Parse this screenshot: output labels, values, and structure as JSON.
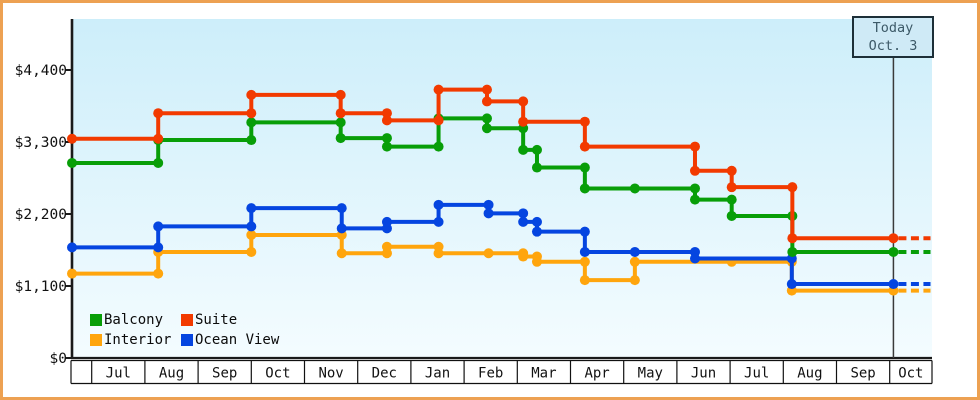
{
  "window": {
    "border_color": "#eda152"
  },
  "today": {
    "line1": "Today",
    "line2": "Oct. 3",
    "t": 15.07
  },
  "legend": {
    "items": [
      {
        "label": "Balcony",
        "color": "#089e08"
      },
      {
        "label": "Suite",
        "color": "#f23a00"
      },
      {
        "label": "Interior",
        "color": "#ffa50d"
      },
      {
        "label": "Ocean View",
        "color": "#0545e0"
      }
    ]
  },
  "chart_data": {
    "type": "line",
    "subtype": "step-price-history",
    "title": "",
    "ylabel": "",
    "xlabel": "",
    "ylim": [
      0,
      4708
    ],
    "grid": false,
    "legend_position": "bottom-left",
    "y_axis": {
      "ticks": [
        {
          "value": 0,
          "label": "$0"
        },
        {
          "value": 1100,
          "label": "$1,100"
        },
        {
          "value": 2200,
          "label": "$2,200"
        },
        {
          "value": 3300,
          "label": "$3,300"
        },
        {
          "value": 4400,
          "label": "$4,400"
        }
      ]
    },
    "x_axis": {
      "months": [
        "Jul",
        "Aug",
        "Sep",
        "Oct",
        "Nov",
        "Dec",
        "Jan",
        "Feb",
        "Mar",
        "Apr",
        "May",
        "Jun",
        "Jul",
        "Aug",
        "Sep",
        "Oct"
      ]
    },
    "annotation": {
      "label": "Today Oct. 3",
      "t": 15.07
    },
    "series": [
      {
        "name": "Interior",
        "color": "#ffa50d",
        "steps": [
          [
            -0.37,
            1290
          ],
          [
            1.25,
            1620
          ],
          [
            3.0,
            1880
          ],
          [
            4.7,
            1600
          ],
          [
            5.55,
            1700
          ],
          [
            6.52,
            1600
          ],
          [
            8.11,
            1550
          ],
          [
            8.37,
            1470
          ],
          [
            9.27,
            1190
          ],
          [
            10.21,
            1470
          ],
          [
            13.16,
            1030
          ]
        ],
        "markers": [
          7.46,
          12.03
        ],
        "end_t": 15.07,
        "current_price": 1030
      },
      {
        "name": "Ocean View",
        "color": "#0545e0",
        "steps": [
          [
            -0.37,
            1690
          ],
          [
            1.25,
            2010
          ],
          [
            3.0,
            2290
          ],
          [
            4.7,
            1980
          ],
          [
            5.55,
            2080
          ],
          [
            6.52,
            2340
          ],
          [
            7.46,
            2210
          ],
          [
            8.11,
            2080
          ],
          [
            8.37,
            1930
          ],
          [
            9.27,
            1620
          ],
          [
            11.34,
            1520
          ],
          [
            13.16,
            1130
          ]
        ],
        "markers": [
          10.21
        ],
        "end_t": 15.07,
        "current_price": 1130
      },
      {
        "name": "Balcony",
        "color": "#089e08",
        "steps": [
          [
            -0.37,
            2980
          ],
          [
            1.25,
            3330
          ],
          [
            3.0,
            3600
          ],
          [
            4.68,
            3360
          ],
          [
            5.55,
            3230
          ],
          [
            6.52,
            3660
          ],
          [
            7.43,
            3510
          ],
          [
            8.11,
            3180
          ],
          [
            8.37,
            2910
          ],
          [
            9.27,
            2590
          ],
          [
            11.34,
            2420
          ],
          [
            12.03,
            2170
          ],
          [
            13.17,
            1620
          ]
        ],
        "markers": [
          10.21
        ],
        "end_t": 15.07,
        "current_price": 1620
      },
      {
        "name": "Suite",
        "color": "#f23a00",
        "steps": [
          [
            -0.37,
            3350
          ],
          [
            1.25,
            3740
          ],
          [
            3.0,
            4020
          ],
          [
            4.68,
            3740
          ],
          [
            5.55,
            3630
          ],
          [
            6.52,
            4100
          ],
          [
            7.43,
            3920
          ],
          [
            8.11,
            3610
          ],
          [
            9.27,
            3230
          ],
          [
            11.34,
            2860
          ],
          [
            12.03,
            2610
          ],
          [
            13.17,
            1830
          ]
        ],
        "markers": [],
        "end_t": 15.07,
        "current_price": 1830
      }
    ]
  }
}
